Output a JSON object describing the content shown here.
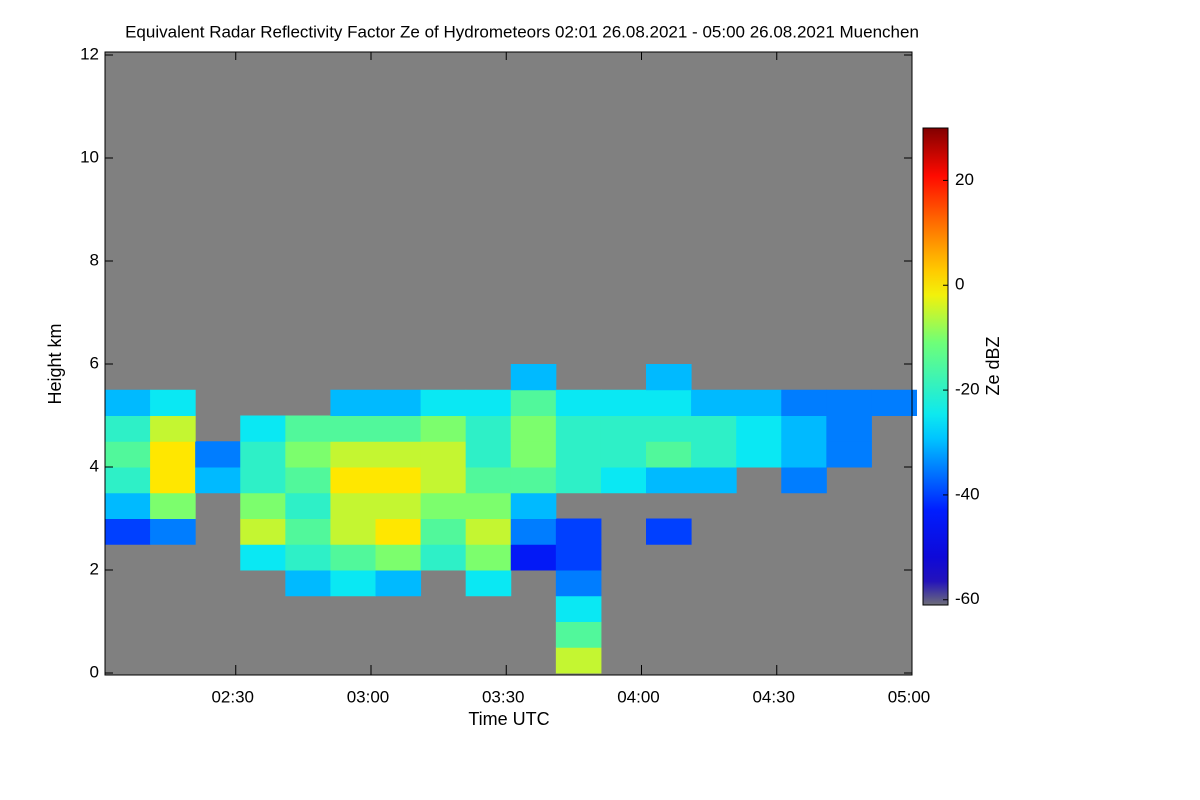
{
  "chart_data": {
    "type": "heatmap",
    "title": "Equivalent Radar Reflectivity Factor Ze of Hydrometeors   02:01 26.08.2021 - 05:00 26.08.2021 Muenchen",
    "x_label": "Time UTC",
    "y_label": "Height km",
    "colorbar_label": "Ze dBZ",
    "background": "#808080",
    "xlim": [
      121,
      300
    ],
    "xticks": [
      {
        "value": 150,
        "label": "02:30"
      },
      {
        "value": 180,
        "label": "03:00"
      },
      {
        "value": 210,
        "label": "03:30"
      },
      {
        "value": 240,
        "label": "04:00"
      },
      {
        "value": 270,
        "label": "04:30"
      },
      {
        "value": 300,
        "label": "05:00"
      }
    ],
    "ylim": [
      0,
      12
    ],
    "yticks": [
      0,
      2,
      4,
      6,
      8,
      10,
      12
    ],
    "clim": [
      -61,
      30
    ],
    "cticks": [
      -60,
      -40,
      -20,
      0,
      20
    ],
    "x": [
      126,
      136,
      146,
      156,
      166,
      176,
      186,
      196,
      206,
      216,
      226,
      236,
      246,
      256,
      266,
      276,
      286,
      296
    ],
    "y": [
      0.25,
      0.75,
      1.25,
      1.75,
      2.25,
      2.75,
      3.25,
      3.75,
      4.25,
      4.75,
      5.25,
      5.75
    ],
    "z": [
      [
        null,
        null,
        null,
        null,
        null,
        null,
        null,
        null,
        null,
        null,
        -5,
        null,
        null,
        null,
        null,
        null,
        null,
        null
      ],
      [
        null,
        null,
        null,
        null,
        null,
        null,
        null,
        null,
        null,
        null,
        -15,
        null,
        null,
        null,
        null,
        null,
        null,
        null
      ],
      [
        null,
        null,
        null,
        null,
        null,
        null,
        null,
        null,
        null,
        null,
        -25,
        null,
        null,
        null,
        null,
        null,
        null,
        null
      ],
      [
        null,
        null,
        null,
        null,
        -30,
        -25,
        -30,
        null,
        -25,
        null,
        -35,
        null,
        null,
        null,
        null,
        null,
        null,
        null
      ],
      [
        null,
        null,
        null,
        -25,
        -20,
        -15,
        -10,
        -20,
        -10,
        -45,
        -40,
        null,
        null,
        null,
        null,
        null,
        null,
        null
      ],
      [
        -40,
        -35,
        null,
        -5,
        -15,
        -5,
        0,
        -15,
        -5,
        -35,
        -40,
        null,
        -40,
        null,
        null,
        null,
        null,
        null
      ],
      [
        -30,
        -10,
        null,
        -10,
        -20,
        -5,
        -5,
        -10,
        -10,
        -30,
        null,
        null,
        null,
        null,
        null,
        null,
        null,
        null
      ],
      [
        -20,
        0,
        -30,
        -20,
        -15,
        0,
        0,
        -5,
        -15,
        -15,
        -20,
        -25,
        -30,
        -30,
        null,
        -35,
        null,
        null
      ],
      [
        -15,
        0,
        -35,
        -20,
        -10,
        -5,
        -5,
        -5,
        -20,
        -10,
        -20,
        -20,
        -15,
        -20,
        -25,
        -30,
        -35,
        null
      ],
      [
        -20,
        -5,
        null,
        -25,
        -15,
        -15,
        -15,
        -10,
        -20,
        -10,
        -20,
        -20,
        -20,
        -20,
        -25,
        -30,
        -35,
        null
      ],
      [
        -30,
        -25,
        null,
        null,
        null,
        -30,
        -30,
        -25,
        -25,
        -15,
        -25,
        -25,
        -25,
        -30,
        -30,
        -35,
        -35,
        -35
      ],
      [
        null,
        null,
        null,
        null,
        null,
        null,
        null,
        null,
        null,
        -30,
        null,
        null,
        -30,
        null,
        null,
        null,
        null,
        null
      ]
    ]
  }
}
